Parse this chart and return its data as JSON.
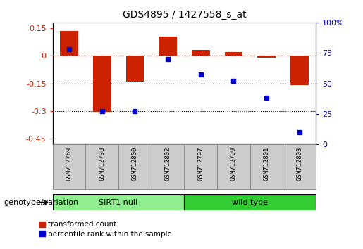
{
  "title": "GDS4895 / 1427558_s_at",
  "samples": [
    "GSM712769",
    "GSM712798",
    "GSM712800",
    "GSM712802",
    "GSM712797",
    "GSM712799",
    "GSM712801",
    "GSM712803"
  ],
  "transformed_counts": [
    0.135,
    -0.305,
    -0.14,
    0.105,
    0.03,
    0.02,
    -0.01,
    -0.16
  ],
  "percentile_ranks": [
    78,
    27,
    27,
    70,
    57,
    52,
    38,
    10
  ],
  "groups": [
    {
      "name": "SIRT1 null",
      "indices": [
        0,
        1,
        2,
        3
      ],
      "color": "#90EE90"
    },
    {
      "name": "wild type",
      "indices": [
        4,
        5,
        6,
        7
      ],
      "color": "#32CD32"
    }
  ],
  "bar_color": "#CC2200",
  "dot_color": "#0000CC",
  "ylim_left": [
    -0.48,
    0.18
  ],
  "ylim_right": [
    0,
    100
  ],
  "yticks_left": [
    0.15,
    0.0,
    -0.15,
    -0.3,
    -0.45
  ],
  "yticks_right": [
    100,
    75,
    50,
    25,
    0
  ],
  "hline_y": 0.0,
  "dotted_lines": [
    -0.15,
    -0.3
  ],
  "background_color": "#ffffff",
  "group_label": "genotype/variation"
}
